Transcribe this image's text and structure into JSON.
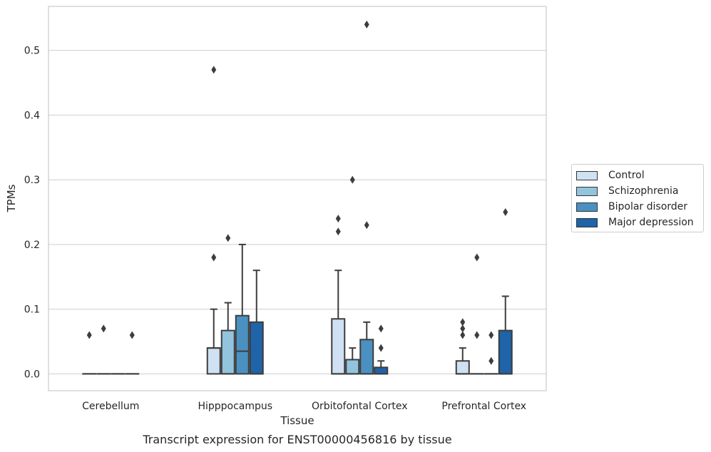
{
  "chart_data": {
    "type": "box",
    "title": "Transcript expression for ENST00000456816 by tissue",
    "xlabel": "Tissue",
    "ylabel": "TPMs",
    "ylim": [
      -0.026,
      0.568
    ],
    "yticks": [
      "0.0",
      "0.1",
      "0.2",
      "0.3",
      "0.4",
      "0.5"
    ],
    "categories": [
      "Cerebellum",
      "Hipppocampus",
      "Orbitofontal Cortex",
      "Prefrontal Cortex"
    ],
    "grid": "horizontal",
    "legend_position": "right",
    "series": [
      {
        "name": "Control",
        "color": "#cfe1f2",
        "boxes": [
          {
            "q1": 0,
            "median": 0,
            "q3": 0,
            "whisker_low": 0,
            "whisker_high": 0,
            "outliers": [
              0.06
            ]
          },
          {
            "q1": 0,
            "median": 0.04,
            "q3": 0.04,
            "whisker_low": 0,
            "whisker_high": 0.1,
            "outliers": [
              0.18,
              0.47
            ]
          },
          {
            "q1": 0,
            "median": 0,
            "q3": 0.085,
            "whisker_low": 0,
            "whisker_high": 0.16,
            "outliers": [
              0.22,
              0.24
            ]
          },
          {
            "q1": 0,
            "median": 0,
            "q3": 0.02,
            "whisker_low": 0,
            "whisker_high": 0.04,
            "outliers": [
              0.06,
              0.07,
              0.08
            ]
          }
        ]
      },
      {
        "name": "Schizophrenia",
        "color": "#93c4de",
        "boxes": [
          {
            "q1": 0,
            "median": 0,
            "q3": 0,
            "whisker_low": 0,
            "whisker_high": 0,
            "outliers": [
              0.07
            ]
          },
          {
            "q1": 0,
            "median": 0,
            "q3": 0.067,
            "whisker_low": 0,
            "whisker_high": 0.11,
            "outliers": [
              0.21
            ]
          },
          {
            "q1": 0,
            "median": 0,
            "q3": 0.022,
            "whisker_low": 0,
            "whisker_high": 0.04,
            "outliers": [
              0.3
            ]
          },
          {
            "q1": 0,
            "median": 0,
            "q3": 0,
            "whisker_low": 0,
            "whisker_high": 0,
            "outliers": [
              0.06,
              0.18
            ]
          }
        ]
      },
      {
        "name": "Bipolar disorder",
        "color": "#4a91c2",
        "boxes": [
          {
            "q1": 0,
            "median": 0,
            "q3": 0,
            "whisker_low": 0,
            "whisker_high": 0,
            "outliers": []
          },
          {
            "q1": 0,
            "median": 0.035,
            "q3": 0.09,
            "whisker_low": 0,
            "whisker_high": 0.2,
            "outliers": []
          },
          {
            "q1": 0,
            "median": 0,
            "q3": 0.053,
            "whisker_low": 0,
            "whisker_high": 0.08,
            "outliers": [
              0.23,
              0.54
            ]
          },
          {
            "q1": 0,
            "median": 0,
            "q3": 0,
            "whisker_low": 0,
            "whisker_high": 0,
            "outliers": [
              0.02,
              0.06
            ]
          }
        ]
      },
      {
        "name": "Major depression",
        "color": "#1f63a8",
        "boxes": [
          {
            "q1": 0,
            "median": 0,
            "q3": 0,
            "whisker_low": 0,
            "whisker_high": 0,
            "outliers": [
              0.06
            ]
          },
          {
            "q1": 0,
            "median": 0,
            "q3": 0.08,
            "whisker_low": 0,
            "whisker_high": 0.16,
            "outliers": []
          },
          {
            "q1": 0,
            "median": 0,
            "q3": 0.01,
            "whisker_low": 0,
            "whisker_high": 0.02,
            "outliers": [
              0.04,
              0.07
            ]
          },
          {
            "q1": 0,
            "median": 0,
            "q3": 0.067,
            "whisker_low": 0,
            "whisker_high": 0.12,
            "outliers": [
              0.25
            ]
          }
        ]
      }
    ]
  }
}
